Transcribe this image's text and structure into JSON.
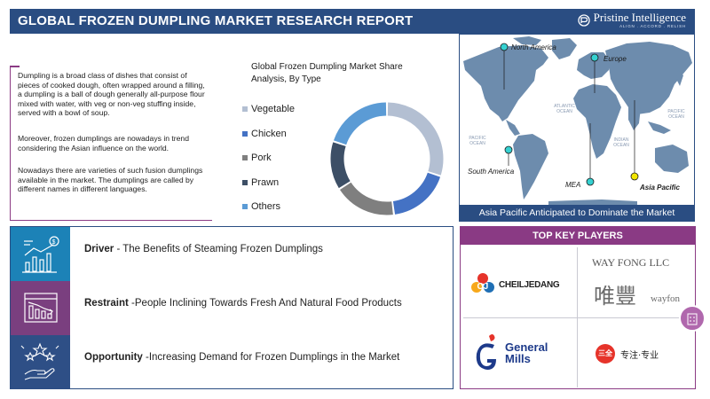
{
  "header": {
    "title": "GLOBAL FROZEN DUMPLING MARKET RESEARCH REPORT",
    "logo_name": "Pristine Intelligence",
    "logo_tagline": "ALIGN . ACCORD . RELISH"
  },
  "description": {
    "p1": "Dumpling is a broad class of dishes that consist of pieces of cooked dough, often wrapped around a filling, a dumpling is a ball of dough generally all-purpose flour mixed with water, with veg or non-veg stuffing inside, served with a bowl of soup.",
    "p2": "Moreover,  frozen dumplings are nowadays in trend considering the Asian influence on the world.",
    "p3": "Nowadays there are varieties of such fusion dumplings available in the market.  The dumplings are called by different names in different languages."
  },
  "chart_data": {
    "type": "pie",
    "donut": true,
    "title": "Global Frozen Dumpling Market Share Analysis, By Type",
    "categories": [
      "Vegetable",
      "Chicken",
      "Pork",
      "Prawn",
      "Others"
    ],
    "values": [
      30,
      18,
      18,
      14,
      20
    ],
    "colors": [
      "#b3bfd2",
      "#4472c4",
      "#7f7f7f",
      "#3d4f66",
      "#5b9bd5"
    ]
  },
  "map": {
    "regions": [
      "North America",
      "Europe",
      "South America",
      "MEA",
      "Asia Pacific"
    ],
    "oceans": {
      "atlantic": [
        "ATLANTIC",
        "OCEAN"
      ],
      "pacific_left": [
        "PACIFIC",
        "OCEAN"
      ],
      "pacific_right": [
        "PACIFIC",
        "OCEAN"
      ],
      "indian": [
        "INDIAN",
        "OCEAN"
      ]
    },
    "caption": "Asia Pacific Anticipated to Dominate the Market",
    "colors": {
      "land": "#6d8cad",
      "marker": "#35d1d1",
      "highlight": "#f2e600"
    }
  },
  "factors": [
    {
      "label": "Driver",
      "text": " - The Benefits of Steaming Frozen Dumplings",
      "icon": "growth-chart-icon",
      "color": "#1c82b7"
    },
    {
      "label": "Restraint",
      "text": " -People Inclining Towards Fresh And Natural Food  Products",
      "icon": "declining-chart-icon",
      "color": "#7a3f7f"
    },
    {
      "label": "Opportunity",
      "text": " -Increasing Demand for Frozen Dumplings in the Market",
      "icon": "stars-hand-icon",
      "color": "#2e4f86"
    }
  ],
  "key_players": {
    "title": "TOP KEY PLAYERS",
    "players": [
      {
        "name": "CJ CHEILJEDANG",
        "mark": "CJ",
        "word": "CHEILJEDANG"
      },
      {
        "name": "WAY FONG LLC",
        "chinese": "唯豐",
        "sub": "wayfon"
      },
      {
        "name": "General Mills",
        "line1": "General",
        "line2": "Mills"
      },
      {
        "name": "三全",
        "mark": "三全",
        "text": "专注·专业"
      }
    ]
  }
}
